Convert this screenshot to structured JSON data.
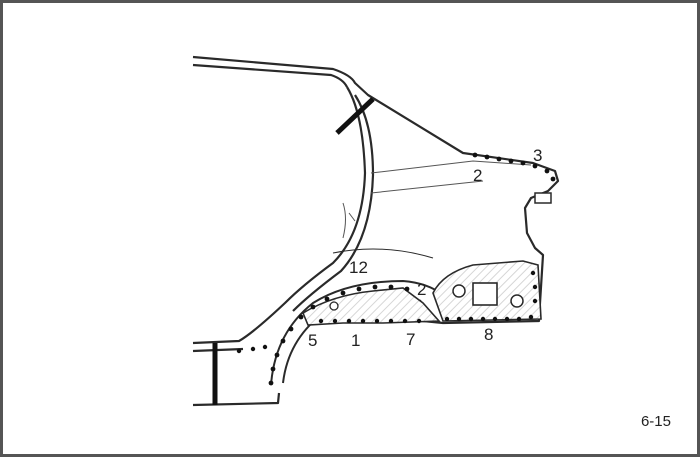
{
  "diagram": {
    "callouts": {
      "c1": "1",
      "c2a": "2",
      "c2b": "2",
      "c3": "3",
      "c5": "5",
      "c7": "7",
      "c8": "8",
      "c12": "12"
    },
    "page_number": "6-15",
    "colors": {
      "frame": "#555555",
      "line": "#2a2a2a",
      "weld_spot": "#111111",
      "hatch": "#cfcfcf"
    }
  }
}
